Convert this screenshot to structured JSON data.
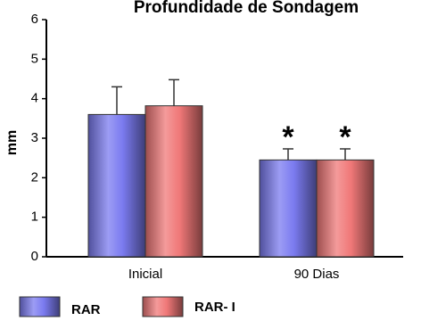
{
  "chart_data": {
    "type": "bar",
    "title": "Profundidade de Sondagem",
    "y_label": "mm",
    "categories": [
      "Inicial",
      "90 Dias"
    ],
    "series": [
      {
        "name": "RAR",
        "color": "#7b7bf0",
        "values": [
          3.6,
          2.45
        ],
        "errors": [
          0.7,
          0.28
        ],
        "annotations": [
          null,
          "*"
        ]
      },
      {
        "name": "RAR- I",
        "color": "#f07878",
        "values": [
          3.82,
          2.45
        ],
        "errors": [
          0.66,
          0.28
        ],
        "annotations": [
          null,
          "*"
        ]
      }
    ],
    "ylim": [
      0,
      6
    ],
    "yticks": [
      0,
      1,
      2,
      3,
      4,
      5,
      6
    ],
    "grid": false
  }
}
